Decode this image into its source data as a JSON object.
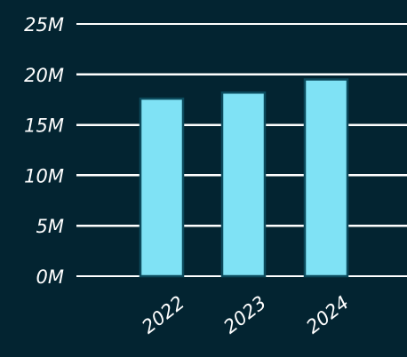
{
  "chart_data": {
    "type": "bar",
    "categories": [
      "2022",
      "2023",
      "2024"
    ],
    "values": [
      17.6,
      18.2,
      19.5
    ],
    "unit": "M",
    "ylim": [
      0,
      25
    ],
    "yticks": [
      {
        "value": 0,
        "label": "0M"
      },
      {
        "value": 5,
        "label": "5M"
      },
      {
        "value": 10,
        "label": "10M"
      },
      {
        "value": 15,
        "label": "15M"
      },
      {
        "value": 20,
        "label": "20M"
      },
      {
        "value": 25,
        "label": "25M"
      }
    ],
    "title": "",
    "xlabel": "",
    "ylabel": "",
    "grid": true,
    "legend": "none",
    "colors": {
      "background": "#032431",
      "bar_fill": "#7fe2f5",
      "bar_stroke": "#0c4a5c",
      "grid": "#ffffff",
      "text": "#ffffff"
    }
  }
}
